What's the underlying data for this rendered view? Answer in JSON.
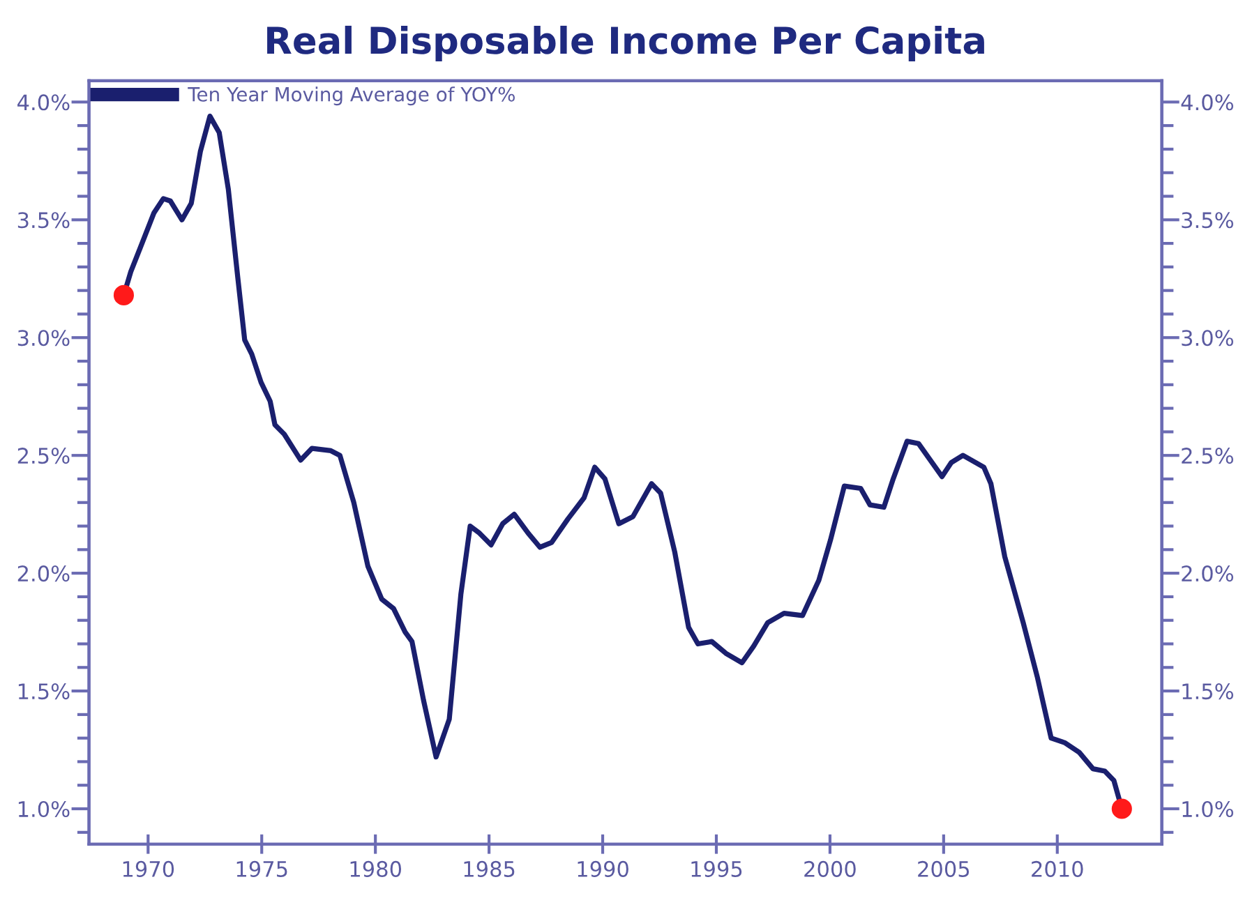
{
  "chart_data": {
    "type": "line",
    "title": "Real Disposable Income Per Capita",
    "xlim": [
      1967.4,
      2014.6
    ],
    "xticks": [
      1970,
      1975,
      1980,
      1985,
      1990,
      1995,
      2000,
      2005,
      2010
    ],
    "ylim": [
      0.85,
      4.09
    ],
    "yticks": [
      {
        "value": 0.9,
        "label": null
      },
      {
        "value": 1.0,
        "label": "1.0%"
      },
      {
        "value": 1.1,
        "label": null
      },
      {
        "value": 1.2,
        "label": null
      },
      {
        "value": 1.3,
        "label": null
      },
      {
        "value": 1.4,
        "label": null
      },
      {
        "value": 1.5,
        "label": "1.5%"
      },
      {
        "value": 1.6,
        "label": null
      },
      {
        "value": 1.7,
        "label": null
      },
      {
        "value": 1.8,
        "label": null
      },
      {
        "value": 1.9,
        "label": null
      },
      {
        "value": 2.0,
        "label": "2.0%"
      },
      {
        "value": 2.1,
        "label": null
      },
      {
        "value": 2.2,
        "label": null
      },
      {
        "value": 2.3,
        "label": null
      },
      {
        "value": 2.4,
        "label": null
      },
      {
        "value": 2.5,
        "label": "2.5%"
      },
      {
        "value": 2.6,
        "label": null
      },
      {
        "value": 2.7,
        "label": null
      },
      {
        "value": 2.8,
        "label": null
      },
      {
        "value": 2.9,
        "label": null
      },
      {
        "value": 3.0,
        "label": "3.0%"
      },
      {
        "value": 3.1,
        "label": null
      },
      {
        "value": 3.2,
        "label": null
      },
      {
        "value": 3.3,
        "label": null
      },
      {
        "value": 3.4,
        "label": null
      },
      {
        "value": 3.5,
        "label": "3.5%"
      },
      {
        "value": 3.6,
        "label": null
      },
      {
        "value": 3.7,
        "label": null
      },
      {
        "value": 3.8,
        "label": null
      },
      {
        "value": 3.9,
        "label": null
      },
      {
        "value": 4.0,
        "label": "4.0%"
      }
    ],
    "y2lim": [
      0.85,
      4.09
    ],
    "y2ticks": [
      {
        "value": 0.9,
        "label": null
      },
      {
        "value": 1.0,
        "label": "1.0%"
      },
      {
        "value": 1.1,
        "label": null
      },
      {
        "value": 1.2,
        "label": null
      },
      {
        "value": 1.3,
        "label": null
      },
      {
        "value": 1.4,
        "label": null
      },
      {
        "value": 1.5,
        "label": "1.5%"
      },
      {
        "value": 1.6,
        "label": null
      },
      {
        "value": 1.7,
        "label": null
      },
      {
        "value": 1.8,
        "label": null
      },
      {
        "value": 1.9,
        "label": null
      },
      {
        "value": 2.0,
        "label": "2.0%"
      },
      {
        "value": 2.1,
        "label": null
      },
      {
        "value": 2.2,
        "label": null
      },
      {
        "value": 2.3,
        "label": null
      },
      {
        "value": 2.4,
        "label": null
      },
      {
        "value": 2.5,
        "label": "2.5%"
      },
      {
        "value": 2.6,
        "label": null
      },
      {
        "value": 2.7,
        "label": null
      },
      {
        "value": 2.8,
        "label": null
      },
      {
        "value": 2.9,
        "label": null
      },
      {
        "value": 3.0,
        "label": "3.0%"
      },
      {
        "value": 3.1,
        "label": null
      },
      {
        "value": 3.2,
        "label": null
      },
      {
        "value": 3.3,
        "label": null
      },
      {
        "value": 3.4,
        "label": null
      },
      {
        "value": 3.5,
        "label": "3.5%"
      },
      {
        "value": 3.6,
        "label": null
      },
      {
        "value": 3.7,
        "label": null
      },
      {
        "value": 3.8,
        "label": null
      },
      {
        "value": 3.9,
        "label": null
      },
      {
        "value": 4.0,
        "label": "4.0%"
      }
    ],
    "grid": false,
    "legend": "top left",
    "marker": "none",
    "line_style": "solid",
    "series": [
      {
        "name": "Ten Year Moving Average of YOY%",
        "color": "#1a1f6e",
        "x": [
          1968.93,
          1969.24,
          1969.65,
          1970.26,
          1970.67,
          1970.98,
          1971.49,
          1971.9,
          1972.3,
          1972.72,
          1973.13,
          1973.53,
          1973.94,
          1974.25,
          1974.56,
          1974.97,
          1975.37,
          1975.58,
          1975.99,
          1976.71,
          1977.21,
          1978.04,
          1978.44,
          1979.05,
          1979.67,
          1980.28,
          1980.8,
          1981.31,
          1981.61,
          1982.12,
          1982.67,
          1983.25,
          1983.76,
          1984.17,
          1984.58,
          1985.09,
          1985.6,
          1986.11,
          1986.72,
          1987.24,
          1987.75,
          1988.47,
          1989.18,
          1989.65,
          1990.1,
          1990.71,
          1991.33,
          1992.15,
          1992.55,
          1993.17,
          1993.78,
          1994.19,
          1994.8,
          1995.42,
          1996.13,
          1996.64,
          1997.26,
          1997.98,
          1998.79,
          1999.51,
          2000.02,
          2000.63,
          2001.35,
          2001.76,
          2002.37,
          2002.78,
          2003.39,
          2003.9,
          2004.93,
          2005.34,
          2005.85,
          2006.77,
          2007.08,
          2007.69,
          2008.5,
          2009.12,
          2009.73,
          2010.34,
          2010.96,
          2011.57,
          2012.09,
          2012.49,
          2012.84
        ],
        "values": [
          3.18,
          3.28,
          3.38,
          3.53,
          3.59,
          3.58,
          3.5,
          3.57,
          3.79,
          3.94,
          3.87,
          3.63,
          3.26,
          2.99,
          2.93,
          2.81,
          2.73,
          2.63,
          2.59,
          2.48,
          2.53,
          2.52,
          2.5,
          2.3,
          2.03,
          1.89,
          1.85,
          1.75,
          1.71,
          1.46,
          1.22,
          1.38,
          1.91,
          2.2,
          2.17,
          2.12,
          2.21,
          2.25,
          2.17,
          2.11,
          2.13,
          2.23,
          2.32,
          2.45,
          2.4,
          2.21,
          2.24,
          2.38,
          2.34,
          2.09,
          1.77,
          1.7,
          1.71,
          1.66,
          1.62,
          1.69,
          1.79,
          1.83,
          1.82,
          1.97,
          2.14,
          2.37,
          2.36,
          2.29,
          2.28,
          2.4,
          2.56,
          2.55,
          2.41,
          2.47,
          2.5,
          2.45,
          2.38,
          2.07,
          1.79,
          1.56,
          1.3,
          1.28,
          1.24,
          1.17,
          1.16,
          1.12,
          1.0
        ]
      },
      {
        "color": "#ff1a1a",
        "type": "scatter",
        "marker": "circle",
        "x": [
          1968.93,
          2012.84
        ],
        "values": [
          3.18,
          1.0
        ]
      }
    ]
  }
}
